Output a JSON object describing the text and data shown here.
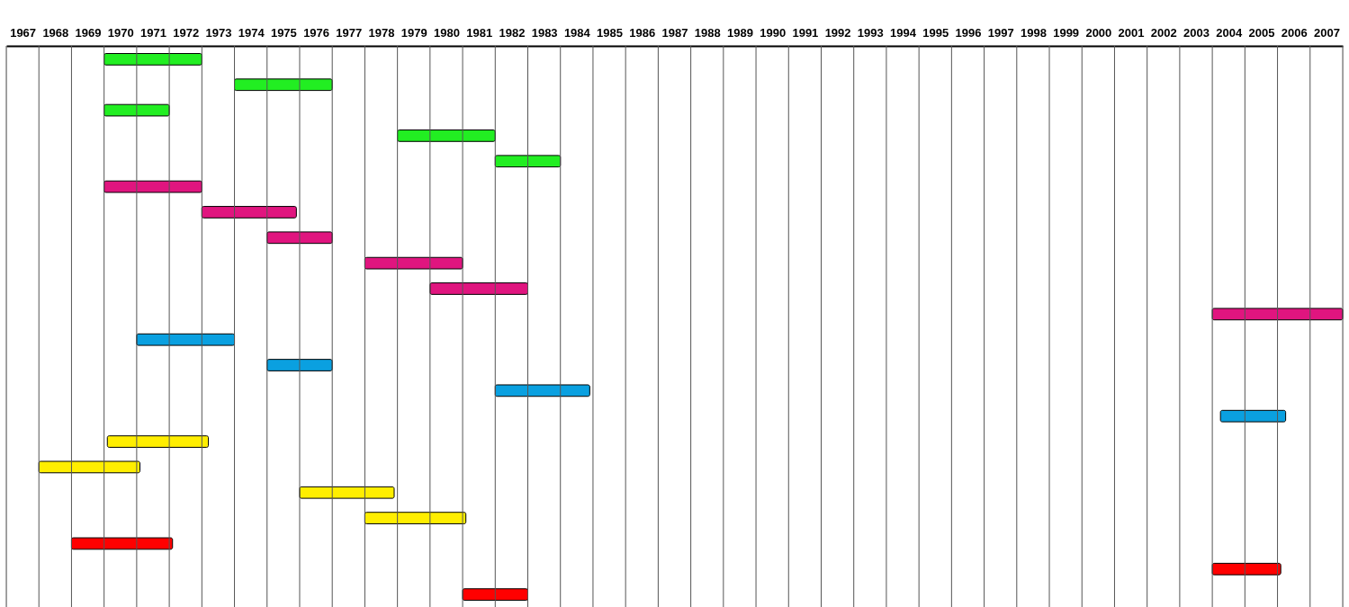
{
  "chart_data": {
    "type": "bar",
    "orientation": "horizontal",
    "grid": "x",
    "categories": [
      null,
      null,
      null,
      null,
      null,
      null,
      null,
      null,
      null,
      null,
      null,
      null,
      null,
      null,
      null,
      null,
      null,
      null,
      null,
      null,
      null,
      null
    ],
    "base": [
      1970,
      1974,
      1970,
      1979,
      1982,
      1970,
      1973,
      1975,
      1978,
      1980,
      2004,
      1971,
      1975,
      1982,
      2004.25,
      1970.1,
      1968,
      1976,
      1978,
      1969,
      2004,
      1981
    ],
    "values": [
      3,
      3,
      2,
      3,
      2,
      3,
      2.9,
      2,
      3,
      3,
      4,
      3,
      2,
      2.9,
      2,
      3.1,
      3.1,
      2.9,
      3.1,
      3.1,
      2.1,
      2
    ],
    "colors": [
      "#22ee22",
      "#22ee22",
      "#22ee22",
      "#22ee22",
      "#22ee22",
      "#e0157f",
      "#e0157f",
      "#e0157f",
      "#e0157f",
      "#e0157f",
      "#e0157f",
      "#0aa0e0",
      "#0aa0e0",
      "#0aa0e0",
      "#0aa0e0",
      "#ffee00",
      "#ffee00",
      "#ffee00",
      "#ffee00",
      "#ff0000",
      "#ff0000",
      "#ff0000"
    ],
    "xlim": [
      1967,
      2008
    ],
    "xticks": [
      {
        "value": 1967,
        "label": null
      },
      {
        "value": 1967.5,
        "label": "1967"
      },
      {
        "value": 1968,
        "label": null
      },
      {
        "value": 1968.5,
        "label": "1968"
      },
      {
        "value": 1969,
        "label": null
      },
      {
        "value": 1969.5,
        "label": "1969"
      },
      {
        "value": 1970,
        "label": null
      },
      {
        "value": 1970.5,
        "label": "1970"
      },
      {
        "value": 1971,
        "label": null
      },
      {
        "value": 1971.5,
        "label": "1971"
      },
      {
        "value": 1972,
        "label": null
      },
      {
        "value": 1972.5,
        "label": "1972"
      },
      {
        "value": 1973,
        "label": null
      },
      {
        "value": 1973.5,
        "label": "1973"
      },
      {
        "value": 1974,
        "label": null
      },
      {
        "value": 1974.5,
        "label": "1974"
      },
      {
        "value": 1975,
        "label": null
      },
      {
        "value": 1975.5,
        "label": "1975"
      },
      {
        "value": 1976,
        "label": null
      },
      {
        "value": 1976.5,
        "label": "1976"
      },
      {
        "value": 1977,
        "label": null
      },
      {
        "value": 1977.5,
        "label": "1977"
      },
      {
        "value": 1978,
        "label": null
      },
      {
        "value": 1978.5,
        "label": "1978"
      },
      {
        "value": 1979,
        "label": null
      },
      {
        "value": 1979.5,
        "label": "1979"
      },
      {
        "value": 1980,
        "label": null
      },
      {
        "value": 1980.5,
        "label": "1980"
      },
      {
        "value": 1981,
        "label": null
      },
      {
        "value": 1981.5,
        "label": "1981"
      },
      {
        "value": 1982,
        "label": null
      },
      {
        "value": 1982.5,
        "label": "1982"
      },
      {
        "value": 1983,
        "label": null
      },
      {
        "value": 1983.5,
        "label": "1983"
      },
      {
        "value": 1984,
        "label": null
      },
      {
        "value": 1984.5,
        "label": "1984"
      },
      {
        "value": 1985,
        "label": null
      },
      {
        "value": 1985.5,
        "label": "1985"
      },
      {
        "value": 1986,
        "label": null
      },
      {
        "value": 1986.5,
        "label": "1986"
      },
      {
        "value": 1987,
        "label": null
      },
      {
        "value": 1987.5,
        "label": "1987"
      },
      {
        "value": 1988,
        "label": null
      },
      {
        "value": 1988.5,
        "label": "1988"
      },
      {
        "value": 1989,
        "label": null
      },
      {
        "value": 1989.5,
        "label": "1989"
      },
      {
        "value": 1990,
        "label": null
      },
      {
        "value": 1990.5,
        "label": "1990"
      },
      {
        "value": 1991,
        "label": null
      },
      {
        "value": 1991.5,
        "label": "1991"
      },
      {
        "value": 1992,
        "label": null
      },
      {
        "value": 1992.5,
        "label": "1992"
      },
      {
        "value": 1993,
        "label": null
      },
      {
        "value": 1993.5,
        "label": "1993"
      },
      {
        "value": 1994,
        "label": null
      },
      {
        "value": 1994.5,
        "label": "1994"
      },
      {
        "value": 1995,
        "label": null
      },
      {
        "value": 1995.5,
        "label": "1995"
      },
      {
        "value": 1996,
        "label": null
      },
      {
        "value": 1996.5,
        "label": "1996"
      },
      {
        "value": 1997,
        "label": null
      },
      {
        "value": 1997.5,
        "label": "1997"
      },
      {
        "value": 1998,
        "label": null
      },
      {
        "value": 1998.5,
        "label": "1998"
      },
      {
        "value": 1999,
        "label": null
      },
      {
        "value": 1999.5,
        "label": "1999"
      },
      {
        "value": 2000,
        "label": null
      },
      {
        "value": 2000.5,
        "label": "2000"
      },
      {
        "value": 2001,
        "label": null
      },
      {
        "value": 2001.5,
        "label": "2001"
      },
      {
        "value": 2002,
        "label": null
      },
      {
        "value": 2002.5,
        "label": "2002"
      },
      {
        "value": 2003,
        "label": null
      },
      {
        "value": 2003.5,
        "label": "2003"
      },
      {
        "value": 2004,
        "label": null
      },
      {
        "value": 2004.5,
        "label": "2004"
      },
      {
        "value": 2005,
        "label": null
      },
      {
        "value": 2005.5,
        "label": "2005"
      },
      {
        "value": 2006,
        "label": null
      },
      {
        "value": 2006.5,
        "label": "2006"
      },
      {
        "value": 2007,
        "label": null
      },
      {
        "value": 2007.5,
        "label": "2007"
      },
      {
        "value": 2008,
        "label": null
      }
    ]
  }
}
